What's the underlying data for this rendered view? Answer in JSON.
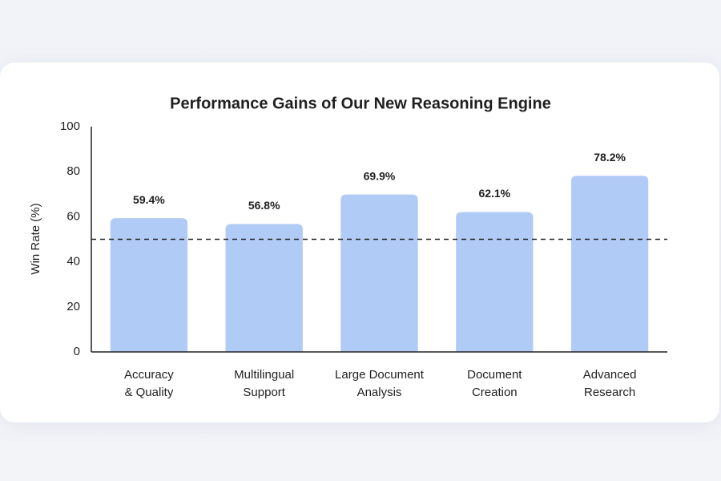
{
  "chart_data": {
    "type": "bar",
    "title": "Performance Gains of Our New Reasoning Engine",
    "y_label": "Win Rate (%)",
    "categories": [
      [
        "Accuracy",
        "& Quality"
      ],
      [
        "Multilingual",
        "Support"
      ],
      [
        "Large Document",
        "Analysis"
      ],
      [
        "Document",
        "Creation"
      ],
      [
        "Advanced",
        "Research"
      ]
    ],
    "values": [
      59.4,
      56.8,
      69.9,
      62.1,
      78.2
    ],
    "value_labels": [
      "59.4%",
      "56.8%",
      "69.9%",
      "62.1%",
      "78.2%"
    ],
    "color": "#b1cbf7",
    "reference_line": 50,
    "ylim": [
      0,
      100
    ],
    "yticks": [
      0,
      20,
      40,
      60,
      80,
      100
    ],
    "grid": false
  }
}
